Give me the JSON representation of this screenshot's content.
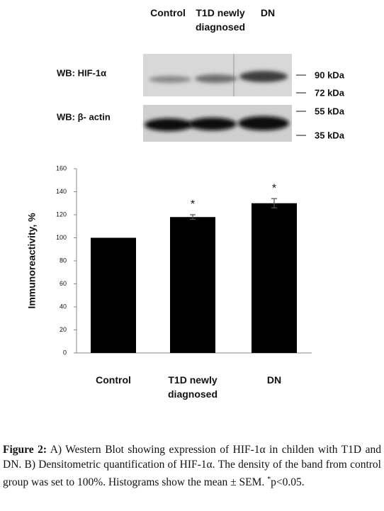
{
  "blot": {
    "lanes": [
      "Control",
      "T1D newly diagnosed",
      "DN"
    ],
    "rows": [
      "WB: HIF-1α",
      "WB: β- actin"
    ],
    "markers": [
      "90 kDa",
      "72 kDa",
      "55 kDa",
      "35 kDa"
    ]
  },
  "chart_data": {
    "type": "bar",
    "ylabel": "Immunoreactivity, %",
    "categories": [
      "Control",
      "T1D newly diagnosed",
      "DN"
    ],
    "values": [
      100,
      118,
      130
    ],
    "errors": [
      null,
      2,
      4
    ],
    "significance": [
      null,
      "*",
      "*"
    ],
    "color": "#000000",
    "ylim": [
      0,
      160
    ],
    "yticks": [
      0,
      20,
      40,
      60,
      80,
      100,
      120,
      140,
      160
    ],
    "grid": false
  },
  "caption": {
    "label": "Figure 2:",
    "text": "A) Western Blot showing expression of HIF-1α in childen with T1D and DN. B) Densitometric quantification of HIF-1α. The density of the band from control group was set to 100%. Histograms show the mean ± SEM. ",
    "sup": "*",
    "end": "p<0.05."
  }
}
